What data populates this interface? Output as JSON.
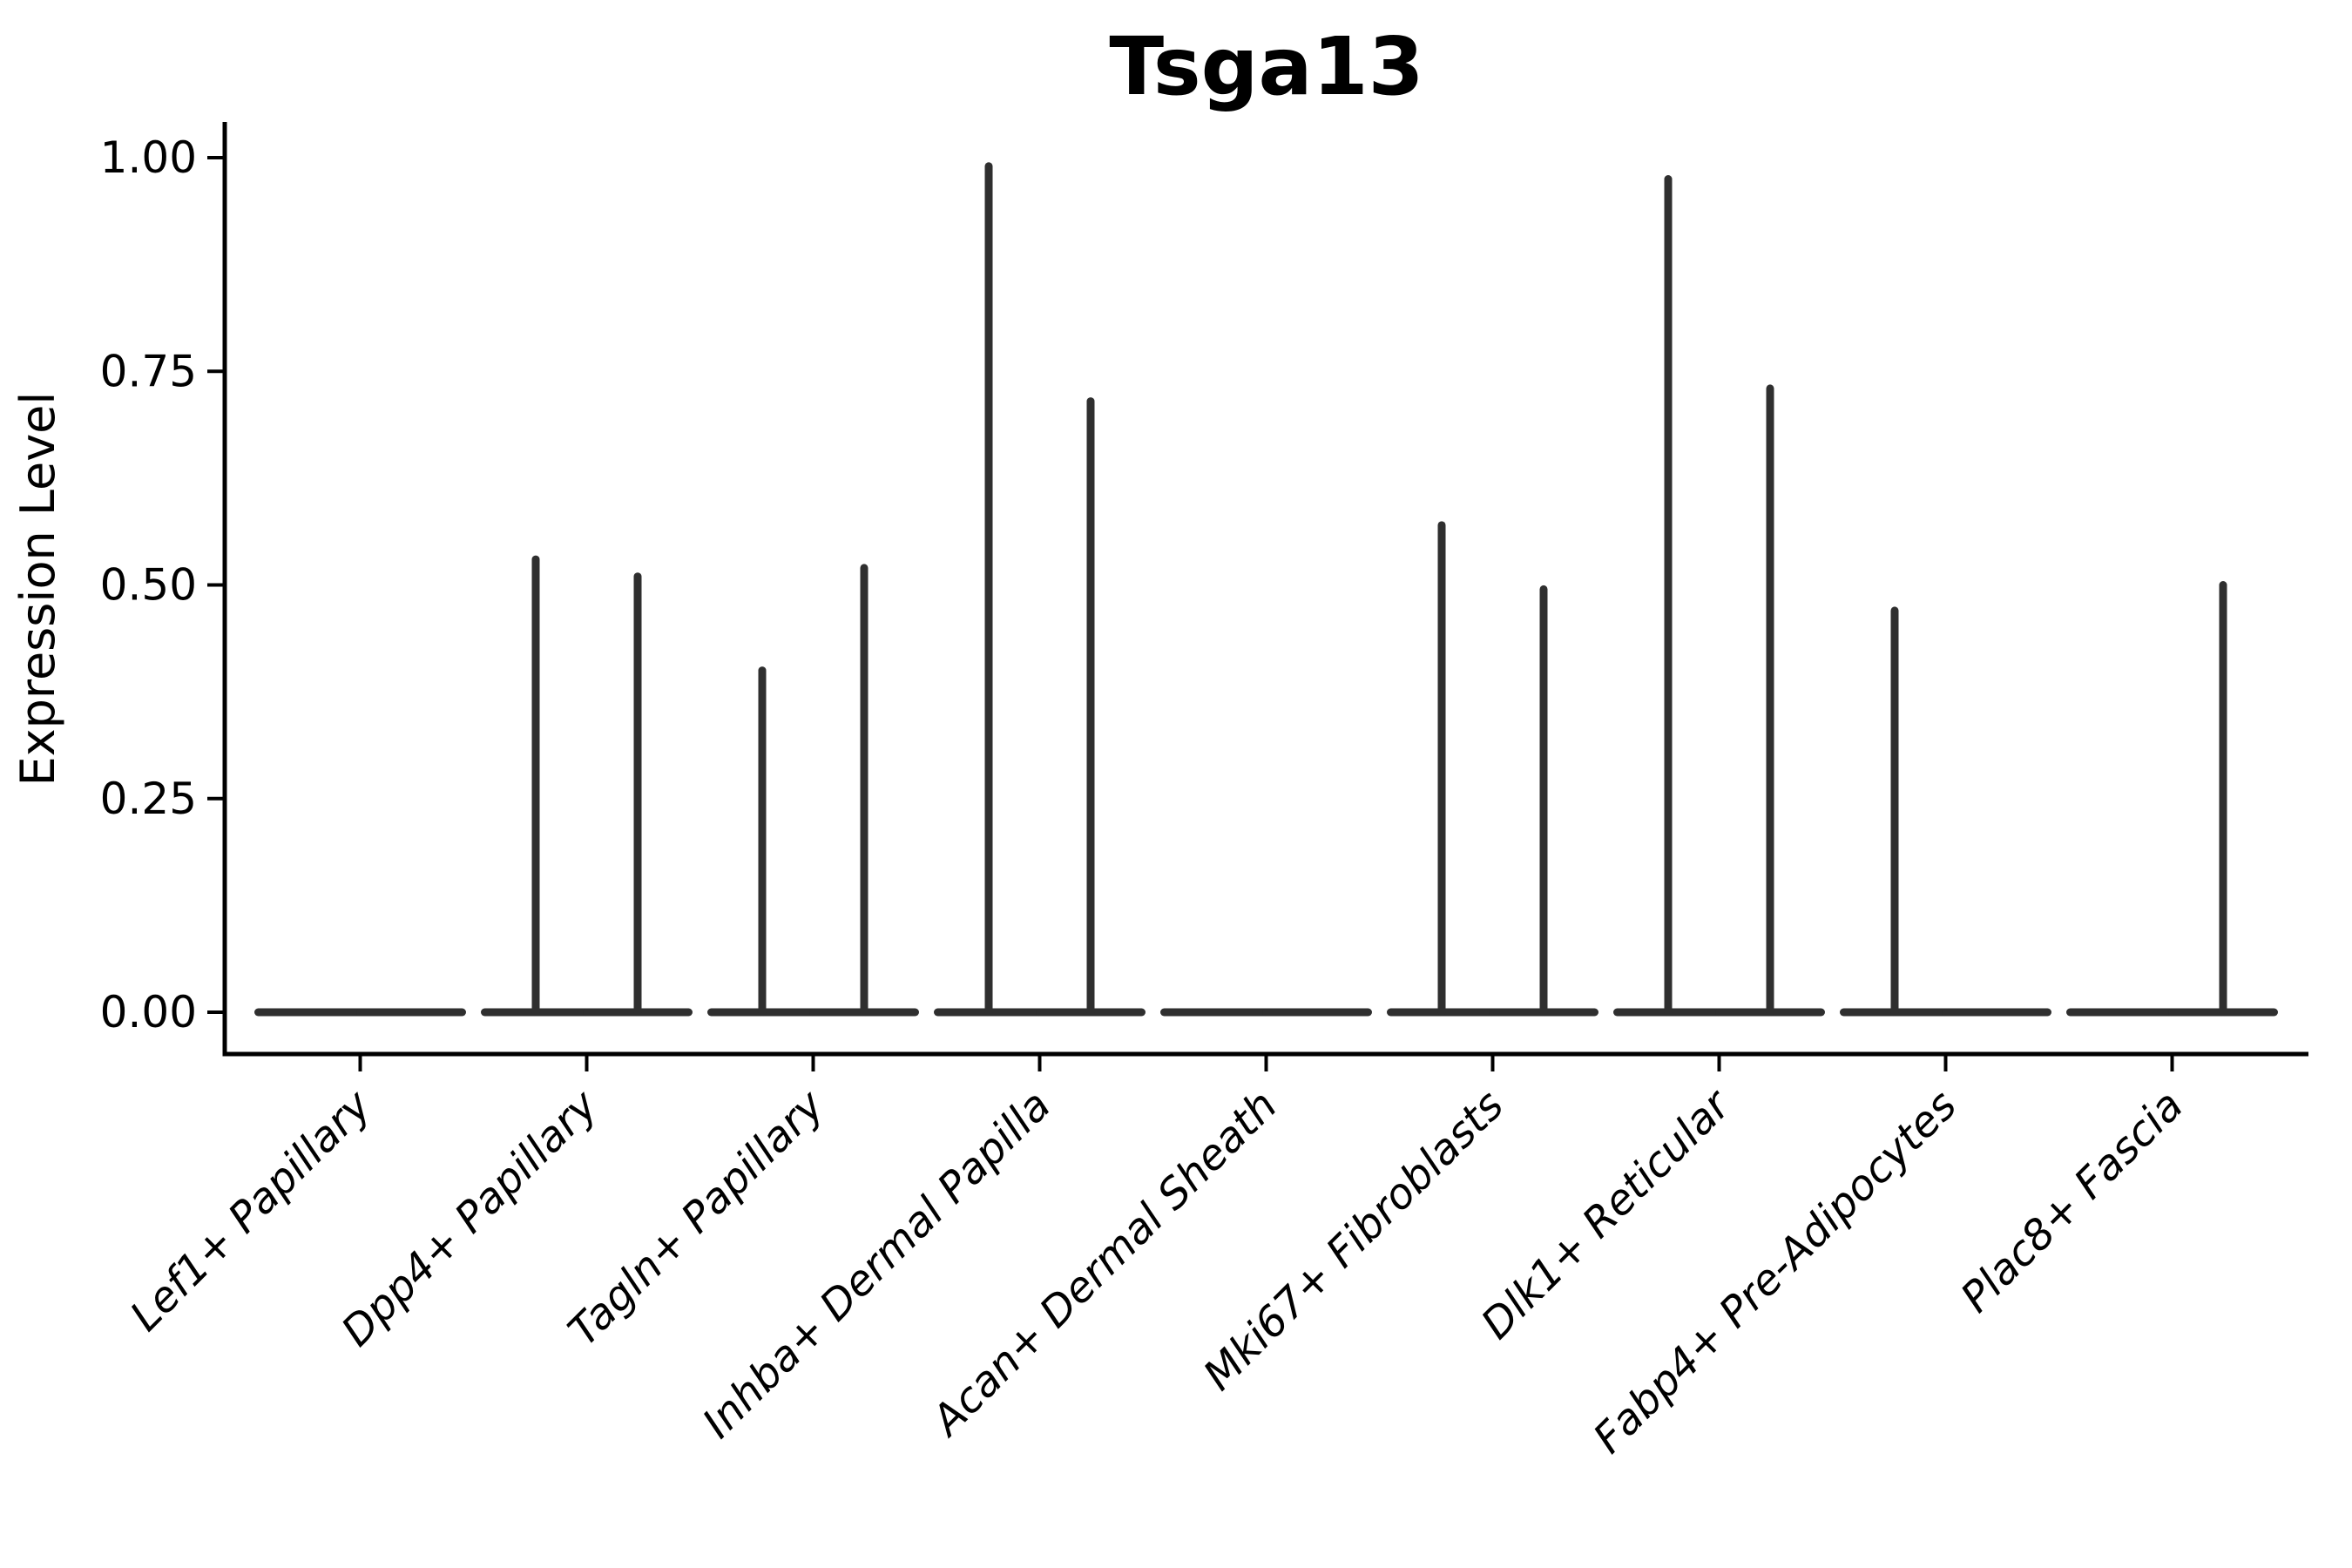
{
  "chart_data": {
    "type": "violin",
    "title": "Tsga13",
    "xlabel": "",
    "ylabel": "Expression Level",
    "ylim": [
      0,
      1.0
    ],
    "y_ticks": [
      {
        "value": 0.0,
        "label": "0.00"
      },
      {
        "value": 0.25,
        "label": "0.25"
      },
      {
        "value": 0.5,
        "label": "0.50"
      },
      {
        "value": 0.75,
        "label": "0.75"
      },
      {
        "value": 1.0,
        "label": "1.00"
      }
    ],
    "categories": [
      "Lef1+ Papillary",
      "Dpp4+ Papillary",
      "Tagln+ Papillary",
      "Inhba+ Dermal Papilla",
      "Acan+ Dermal Sheath",
      "Mki67+ Fibroblasts",
      "Dlk1+ Reticular",
      "Fabp4+ Pre-Adipocytes",
      "Plac8+ Fascia"
    ],
    "series": [
      {
        "name": "left-violin",
        "description": "left sub-violin per category; bulk of density at 0 with thin spike to max expression",
        "max_expression": [
          0,
          0.53,
          0.4,
          0.99,
          0,
          0.57,
          0.975,
          0.47,
          0
        ]
      },
      {
        "name": "right-violin",
        "description": "right sub-violin per category; bulk of density at 0 with thin spike to max expression",
        "max_expression": [
          0,
          0.51,
          0.52,
          0.715,
          0,
          0.495,
          0.73,
          0,
          0.5
        ]
      }
    ],
    "layout": {
      "grid": "off",
      "legend": "none",
      "background_color": "#ffffff",
      "axis_color": "#000000",
      "violin_color": "#2f2f2f",
      "x_tick_label_style": "italic, rotated 45 degrees",
      "y_axis_side": "left"
    }
  }
}
